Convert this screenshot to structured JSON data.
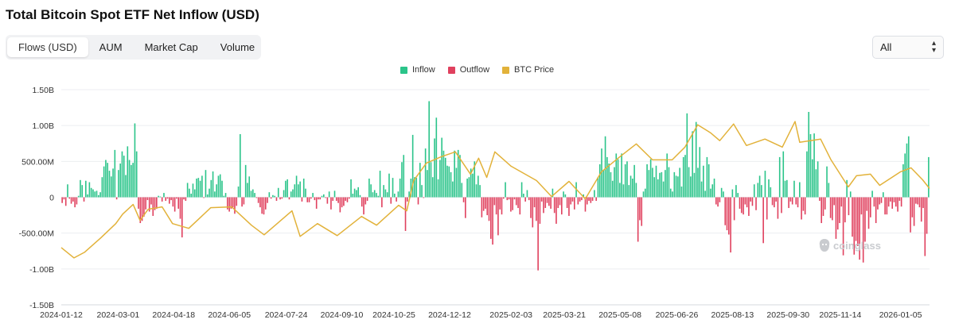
{
  "title": "Total Bitcoin Spot ETF Net Inflow (USD)",
  "tabs": [
    {
      "label": "Flows (USD)",
      "active": true
    },
    {
      "label": "AUM",
      "active": false
    },
    {
      "label": "Market Cap",
      "active": false
    },
    {
      "label": "Volume",
      "active": false
    }
  ],
  "range_select": {
    "value": "All",
    "icon": "chevron-up-down-icon"
  },
  "watermark": "coinglass",
  "colors": {
    "inflow": "#2bc48a",
    "outflow": "#e0405e",
    "price": "#e2b23a",
    "grid": "#eceef1"
  },
  "chart_data": {
    "type": "bar",
    "title": "Total Bitcoin Spot ETF Net Inflow (USD)",
    "legend": [
      "Inflow",
      "Outflow",
      "BTC Price"
    ],
    "legend_position": "top-center",
    "grid": true,
    "ylim": [
      -1500000000,
      1500000000
    ],
    "y_ticks": [
      {
        "value": 1500000000,
        "label": "1.50B"
      },
      {
        "value": 1000000000,
        "label": "1.00B"
      },
      {
        "value": 500000000,
        "label": "500.00M"
      },
      {
        "value": 0,
        "label": "0"
      },
      {
        "value": -500000000,
        "label": "-500.00M"
      },
      {
        "value": -1000000000,
        "label": "-1.00B"
      },
      {
        "value": -1500000000,
        "label": "-1.50B"
      }
    ],
    "x_range": [
      "2024-01-12",
      "2026-01-30"
    ],
    "x_ticks": [
      "2024-01-12",
      "2024-03-01",
      "2024-04-18",
      "2024-06-05",
      "2024-07-24",
      "2024-09-10",
      "2024-10-25",
      "2024-12-12",
      "2025-02-03",
      "2025-03-21",
      "2025-05-08",
      "2025-06-26",
      "2025-08-13",
      "2025-09-30",
      "2025-11-14",
      "2026-01-05"
    ],
    "flows": {
      "start": "2024-01-12",
      "interval": "trading day",
      "unit": "USD",
      "values": [
        -80000000.0,
        -30000000.0,
        -120000000.0,
        180000000.0,
        -20000000.0,
        -90000000.0,
        -60000000.0,
        -140000000.0,
        -100000000.0,
        20000000.0,
        240000000.0,
        170000000.0,
        -60000000.0,
        230000000.0,
        40000000.0,
        210000000.0,
        130000000.0,
        110000000.0,
        80000000.0,
        90000000.0,
        30000000.0,
        70000000.0,
        280000000.0,
        430000000.0,
        520000000.0,
        480000000.0,
        370000000.0,
        290000000.0,
        400000000.0,
        660000000.0,
        -30000000.0,
        380000000.0,
        470000000.0,
        640000000.0,
        580000000.0,
        310000000.0,
        710000000.0,
        520000000.0,
        450000000.0,
        480000000.0,
        1030000000.0,
        640000000.0,
        -160000000.0,
        -360000000.0,
        -330000000.0,
        -270000000.0,
        -170000000.0,
        -40000000.0,
        -200000000.0,
        -100000000.0,
        -260000000.0,
        -180000000.0,
        -160000000.0,
        20000000.0,
        10000000.0,
        -60000000.0,
        60000000.0,
        -50000000.0,
        -20000000.0,
        -90000000.0,
        -40000000.0,
        -130000000.0,
        -200000000.0,
        -20000000.0,
        -160000000.0,
        -300000000.0,
        -560000000.0,
        -30000000.0,
        -50000000.0,
        200000000.0,
        120000000.0,
        50000000.0,
        190000000.0,
        110000000.0,
        260000000.0,
        270000000.0,
        230000000.0,
        300000000.0,
        -10000000.0,
        380000000.0,
        40000000.0,
        120000000.0,
        240000000.0,
        360000000.0,
        80000000.0,
        180000000.0,
        300000000.0,
        320000000.0,
        230000000.0,
        20000000.0,
        60000000.0,
        -170000000.0,
        -200000000.0,
        -160000000.0,
        -140000000.0,
        -230000000.0,
        -120000000.0,
        150000000.0,
        880000000.0,
        -130000000.0,
        -100000000.0,
        450000000.0,
        200000000.0,
        290000000.0,
        90000000.0,
        110000000.0,
        60000000.0,
        -10000000.0,
        -80000000.0,
        -140000000.0,
        -230000000.0,
        -240000000.0,
        -170000000.0,
        -80000000.0,
        70000000.0,
        -20000000.0,
        30000000.0,
        20000000.0,
        -50000000.0,
        130000000.0,
        -30000000.0,
        -20000000.0,
        100000000.0,
        230000000.0,
        250000000.0,
        -30000000.0,
        80000000.0,
        110000000.0,
        180000000.0,
        300000000.0,
        180000000.0,
        220000000.0,
        -60000000.0,
        260000000.0,
        120000000.0,
        -70000000.0,
        -70000000.0,
        -20000000.0,
        60000000.0,
        -40000000.0,
        -160000000.0,
        -30000000.0,
        -30000000.0,
        20000000.0,
        40000000.0,
        -10000000.0,
        -90000000.0,
        80000000.0,
        -170000000.0,
        -50000000.0,
        90000000.0,
        -50000000.0,
        -80000000.0,
        -210000000.0,
        -140000000.0,
        -120000000.0,
        -50000000.0,
        -70000000.0,
        -20000000.0,
        250000000.0,
        50000000.0,
        120000000.0,
        100000000.0,
        140000000.0,
        30000000.0,
        -130000000.0,
        -240000000.0,
        -100000000.0,
        -50000000.0,
        260000000.0,
        180000000.0,
        70000000.0,
        100000000.0,
        60000000.0,
        20000000.0,
        370000000.0,
        -140000000.0,
        170000000.0,
        110000000.0,
        70000000.0,
        330000000.0,
        -90000000.0,
        270000000.0,
        50000000.0,
        -60000000.0,
        80000000.0,
        260000000.0,
        490000000.0,
        590000000.0,
        -470000000.0,
        -60000000.0,
        80000000.0,
        260000000.0,
        870000000.0,
        280000000.0,
        270000000.0,
        -100000000.0,
        480000000.0,
        170000000.0,
        -10000000.0,
        680000000.0,
        380000000.0,
        1340000000.0,
        490000000.0,
        280000000.0,
        820000000.0,
        1110000000.0,
        250000000.0,
        520000000.0,
        830000000.0,
        650000000.0,
        550000000.0,
        440000000.0,
        430000000.0,
        350000000.0,
        220000000.0,
        650000000.0,
        410000000.0,
        660000000.0,
        590000000.0,
        200000000.0,
        -70000000.0,
        -290000000.0,
        260000000.0,
        280000000.0,
        400000000.0,
        330000000.0,
        500000000.0,
        180000000.0,
        300000000.0,
        170000000.0,
        -280000000.0,
        -190000000.0,
        -160000000.0,
        -250000000.0,
        -330000000.0,
        -580000000.0,
        -660000000.0,
        -110000000.0,
        -240000000.0,
        -530000000.0,
        -170000000.0,
        -240000000.0,
        -20000000.0,
        210000000.0,
        -40000000.0,
        -30000000.0,
        -200000000.0,
        -180000000.0,
        -30000000.0,
        -110000000.0,
        -150000000.0,
        -240000000.0,
        210000000.0,
        50000000.0,
        -60000000.0,
        100000000.0,
        -40000000.0,
        -290000000.0,
        -420000000.0,
        -140000000.0,
        -330000000.0,
        -1020000000.0,
        -370000000.0,
        -60000000.0,
        -220000000.0,
        -150000000.0,
        -80000000.0,
        -120000000.0,
        -160000000.0,
        120000000.0,
        -220000000.0,
        -370000000.0,
        -150000000.0,
        -110000000.0,
        -240000000.0,
        80000000.0,
        40000000.0,
        -150000000.0,
        -260000000.0,
        -100000000.0,
        -60000000.0,
        -170000000.0,
        210000000.0,
        -100000000.0,
        -60000000.0,
        -40000000.0,
        40000000.0,
        -200000000.0,
        -100000000.0,
        -50000000.0,
        -80000000.0,
        -50000000.0,
        100000000.0,
        -50000000.0,
        280000000.0,
        460000000.0,
        680000000.0,
        380000000.0,
        850000000.0,
        560000000.0,
        470000000.0,
        350000000.0,
        230000000.0,
        420000000.0,
        610000000.0,
        530000000.0,
        200000000.0,
        610000000.0,
        180000000.0,
        460000000.0,
        500000000.0,
        170000000.0,
        300000000.0,
        260000000.0,
        450000000.0,
        200000000.0,
        -620000000.0,
        -320000000.0,
        -400000000.0,
        80000000.0,
        120000000.0,
        460000000.0,
        380000000.0,
        530000000.0,
        410000000.0,
        280000000.0,
        440000000.0,
        250000000.0,
        340000000.0,
        350000000.0,
        220000000.0,
        380000000.0,
        610000000.0,
        420000000.0,
        120000000.0,
        80000000.0,
        350000000.0,
        300000000.0,
        290000000.0,
        410000000.0,
        150000000.0,
        560000000.0,
        590000000.0,
        1170000000.0,
        420000000.0,
        290000000.0,
        920000000.0,
        340000000.0,
        1050000000.0,
        410000000.0,
        700000000.0,
        220000000.0,
        440000000.0,
        90000000.0,
        560000000.0,
        460000000.0,
        120000000.0,
        180000000.0,
        260000000.0,
        -100000000.0,
        -130000000.0,
        -70000000.0,
        130000000.0,
        80000000.0,
        -390000000.0,
        -460000000.0,
        -520000000.0,
        -770000000.0,
        110000000.0,
        -320000000.0,
        170000000.0,
        60000000.0,
        -160000000.0,
        -220000000.0,
        -240000000.0,
        -100000000.0,
        -140000000.0,
        -260000000.0,
        -60000000.0,
        -120000000.0,
        180000000.0,
        -180000000.0,
        200000000.0,
        300000000.0,
        170000000.0,
        -640000000.0,
        370000000.0,
        -310000000.0,
        250000000.0,
        140000000.0,
        -110000000.0,
        -140000000.0,
        -60000000.0,
        -300000000.0,
        560000000.0,
        -220000000.0,
        640000000.0,
        230000000.0,
        240000000.0,
        -150000000.0,
        -60000000.0,
        -100000000.0,
        230000000.0,
        -100000000.0,
        -140000000.0,
        210000000.0,
        -310000000.0,
        -190000000.0,
        -240000000.0,
        640000000.0,
        1190000000.0,
        880000000.0,
        530000000.0,
        890000000.0,
        390000000.0,
        500000000.0,
        -50000000.0,
        -360000000.0,
        -260000000.0,
        -170000000.0,
        430000000.0,
        200000000.0,
        -290000000.0,
        -320000000.0,
        -110000000.0,
        -580000000.0,
        -450000000.0,
        -360000000.0,
        -130000000.0,
        -810000000.0,
        -350000000.0,
        240000000.0,
        -250000000.0,
        80000000.0,
        -550000000.0,
        -800000000.0,
        -610000000.0,
        -680000000.0,
        -870000000.0,
        -240000000.0,
        -910000000.0,
        -620000000.0,
        -190000000.0,
        -440000000.0,
        -280000000.0,
        90000000.0,
        -130000000.0,
        -360000000.0,
        -170000000.0,
        -100000000.0,
        -80000000.0,
        70000000.0,
        -240000000.0,
        -240000000.0,
        -130000000.0,
        -60000000.0,
        -160000000.0,
        -70000000.0,
        -130000000.0,
        -200000000.0,
        -50000000.0,
        -130000000.0,
        460000000.0,
        610000000.0,
        750000000.0,
        850000000.0,
        -490000000.0,
        -280000000.0,
        -400000000.0,
        -90000000.0,
        -100000000.0,
        -140000000.0,
        -340000000.0,
        -150000000.0,
        -820000000.0,
        -510000000.0,
        560000000.0
      ]
    },
    "btc_price": {
      "name": "BTC Price",
      "unit": "USD",
      "points": [
        [
          "2024-01-12",
          46000
        ],
        [
          "2024-01-23",
          39500
        ],
        [
          "2024-02-01",
          43000
        ],
        [
          "2024-02-15",
          52000
        ],
        [
          "2024-02-28",
          61000
        ],
        [
          "2024-03-05",
          67000
        ],
        [
          "2024-03-14",
          73000
        ],
        [
          "2024-03-20",
          63000
        ],
        [
          "2024-03-27",
          70000
        ],
        [
          "2024-04-08",
          71500
        ],
        [
          "2024-04-17",
          61000
        ],
        [
          "2024-05-01",
          58000
        ],
        [
          "2024-05-20",
          71000
        ],
        [
          "2024-06-07",
          71500
        ],
        [
          "2024-06-24",
          60000
        ],
        [
          "2024-07-05",
          54000
        ],
        [
          "2024-07-29",
          69000
        ],
        [
          "2024-08-05",
          53000
        ],
        [
          "2024-08-20",
          61000
        ],
        [
          "2024-09-06",
          53500
        ],
        [
          "2024-09-27",
          65500
        ],
        [
          "2024-10-10",
          60000
        ],
        [
          "2024-10-29",
          72500
        ],
        [
          "2024-11-05",
          69000
        ],
        [
          "2024-11-11",
          88000
        ],
        [
          "2024-11-22",
          99000
        ],
        [
          "2024-12-05",
          103000
        ],
        [
          "2024-12-17",
          106000
        ],
        [
          "2024-12-30",
          92000
        ],
        [
          "2025-01-06",
          102000
        ],
        [
          "2025-01-13",
          90000
        ],
        [
          "2025-01-20",
          106000
        ],
        [
          "2025-02-03",
          97000
        ],
        [
          "2025-02-25",
          88000
        ],
        [
          "2025-03-10",
          78000
        ],
        [
          "2025-03-25",
          87500
        ],
        [
          "2025-04-08",
          76500
        ],
        [
          "2025-04-22",
          93500
        ],
        [
          "2025-05-08",
          103000
        ],
        [
          "2025-05-22",
          111000
        ],
        [
          "2025-06-05",
          101000
        ],
        [
          "2025-06-22",
          101000
        ],
        [
          "2025-07-03",
          109000
        ],
        [
          "2025-07-14",
          123000
        ],
        [
          "2025-07-25",
          118000
        ],
        [
          "2025-08-02",
          113000
        ],
        [
          "2025-08-14",
          123500
        ],
        [
          "2025-08-25",
          110000
        ],
        [
          "2025-09-10",
          114000
        ],
        [
          "2025-09-25",
          109000
        ],
        [
          "2025-10-06",
          125000
        ],
        [
          "2025-10-10",
          112000
        ],
        [
          "2025-10-28",
          114000
        ],
        [
          "2025-11-06",
          101000
        ],
        [
          "2025-11-21",
          84000
        ],
        [
          "2025-11-28",
          91000
        ],
        [
          "2025-12-10",
          92000
        ],
        [
          "2025-12-18",
          85000
        ],
        [
          "2026-01-05",
          93500
        ],
        [
          "2026-01-14",
          96000
        ],
        [
          "2026-01-24",
          88500
        ],
        [
          "2026-01-30",
          83000
        ]
      ]
    }
  }
}
